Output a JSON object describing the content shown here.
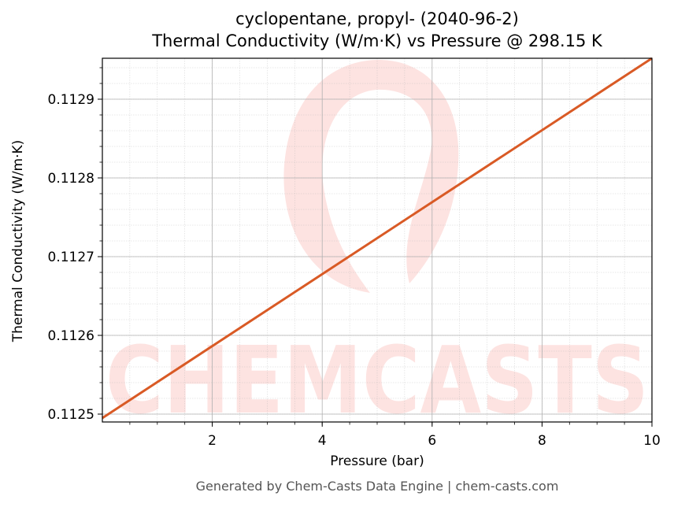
{
  "title_line1": "cyclopentane, propyl- (2040-96-2)",
  "title_line2": "Thermal Conductivity (W/m·K) vs Pressure @ 298.15 K",
  "footer": "Generated by Chem-Casts Data Engine | chem-casts.com",
  "watermark": "CHEMCASTS",
  "colors": {
    "line": "#d95a25",
    "watermark": "#fde3e1",
    "grid": "#b0b0b0"
  },
  "chart_data": {
    "type": "line",
    "title": "cyclopentane, propyl- (2040-96-2)\nThermal Conductivity (W/m·K) vs Pressure @ 298.15 K",
    "xlabel": "Pressure (bar)",
    "ylabel": "Thermal Conductivity (W/m·K)",
    "xlim": [
      0,
      10
    ],
    "ylim": [
      0.11249,
      0.112952
    ],
    "x_ticks": [
      2,
      4,
      6,
      8,
      10
    ],
    "x_tick_labels": [
      "2",
      "4",
      "6",
      "8",
      "10"
    ],
    "y_ticks": [
      0.1125,
      0.1126,
      0.1127,
      0.1128,
      0.1129
    ],
    "y_tick_labels": [
      "0.1125",
      "0.1126",
      "0.1127",
      "0.1128",
      "0.1129"
    ],
    "grid": true,
    "series": [
      {
        "x": [
          0,
          10
        ],
        "y": [
          0.112495,
          0.112952
        ]
      }
    ]
  }
}
